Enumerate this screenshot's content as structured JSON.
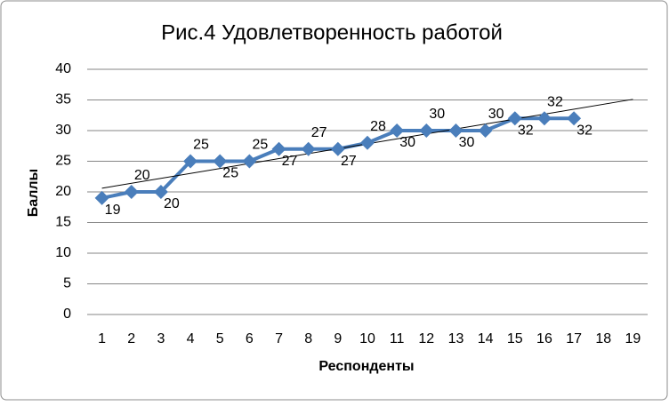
{
  "chart_data": {
    "type": "line",
    "title": "Рис.4 Удовлетворенность работой",
    "x_label": "Респонденты",
    "y_label": "Баллы",
    "categories": [
      "1",
      "2",
      "3",
      "4",
      "5",
      "6",
      "7",
      "8",
      "9",
      "10",
      "11",
      "12",
      "13",
      "14",
      "15",
      "16",
      "17",
      "18",
      "19"
    ],
    "series": [
      {
        "name": "Баллы",
        "color": "#4a7ebb",
        "values": [
          19,
          20,
          20,
          25,
          25,
          25,
          27,
          27,
          27,
          28,
          30,
          30,
          30,
          30,
          32,
          32,
          32,
          null,
          null
        ]
      }
    ],
    "trendline": {
      "start": 20.6,
      "end": 35.1
    },
    "ylim": [
      0,
      40
    ],
    "yticks": [
      0,
      5,
      10,
      15,
      20,
      25,
      30,
      35,
      40
    ],
    "grid": true,
    "data_labels": true
  }
}
